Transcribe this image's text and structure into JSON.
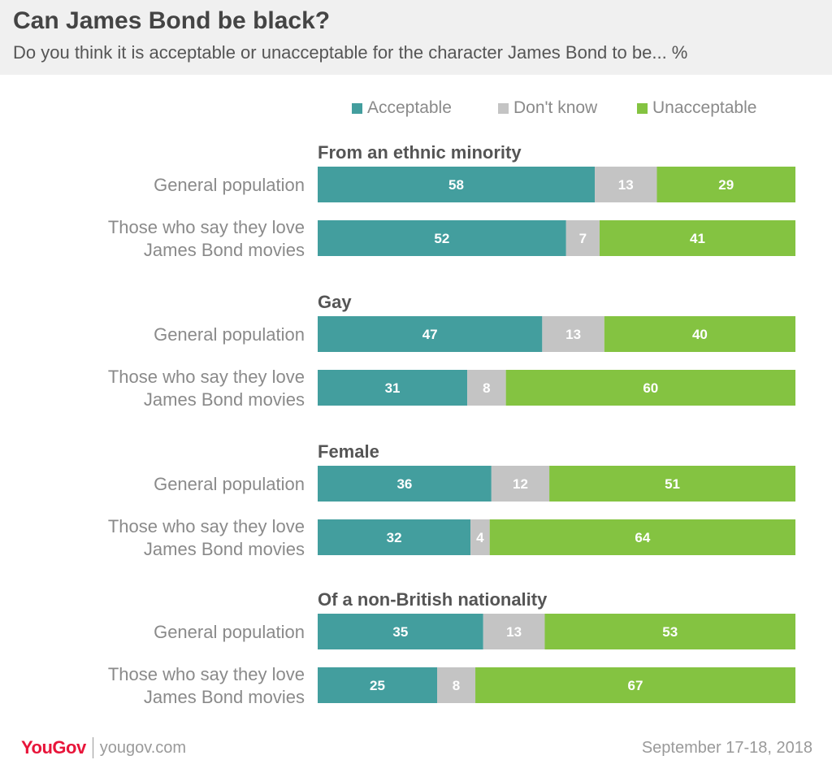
{
  "header": {
    "title": "Can James Bond be black?",
    "subtitle": "Do you think it is acceptable or unacceptable for the character James Bond to be... %"
  },
  "legend": [
    {
      "label": "Acceptable",
      "color": "#439e9e"
    },
    {
      "label": "Don't know",
      "color": "#c4c4c4"
    },
    {
      "label": "Unacceptable",
      "color": "#84c341"
    }
  ],
  "chart_data": {
    "type": "bar",
    "orientation": "horizontal",
    "stacked": true,
    "xlim": [
      0,
      100
    ],
    "unit": "%",
    "legend_position": "top-right",
    "grid": false,
    "series": [
      {
        "name": "Acceptable",
        "color": "#439e9e"
      },
      {
        "name": "Don't know",
        "color": "#c4c4c4"
      },
      {
        "name": "Unacceptable",
        "color": "#84c341"
      }
    ],
    "groups": [
      {
        "title": "From an ethnic minority",
        "rows": [
          {
            "label_lines": [
              "General population"
            ],
            "values": [
              58,
              13,
              29
            ]
          },
          {
            "label_lines": [
              "Those who say they love",
              "James Bond movies"
            ],
            "values": [
              52,
              7,
              41
            ]
          }
        ]
      },
      {
        "title": "Gay",
        "rows": [
          {
            "label_lines": [
              "General population"
            ],
            "values": [
              47,
              13,
              40
            ]
          },
          {
            "label_lines": [
              "Those who say they love",
              "James Bond movies"
            ],
            "values": [
              31,
              8,
              60
            ]
          }
        ]
      },
      {
        "title": "Female",
        "rows": [
          {
            "label_lines": [
              "General population"
            ],
            "values": [
              36,
              12,
              51
            ]
          },
          {
            "label_lines": [
              "Those who say they love",
              "James Bond movies"
            ],
            "values": [
              32,
              4,
              64
            ]
          }
        ]
      },
      {
        "title": "Of a non-British nationality",
        "rows": [
          {
            "label_lines": [
              "General population"
            ],
            "values": [
              35,
              13,
              53
            ]
          },
          {
            "label_lines": [
              "Those who say they love",
              "James Bond movies"
            ],
            "values": [
              25,
              8,
              67
            ]
          }
        ]
      }
    ]
  },
  "footer": {
    "brand": "YouGov",
    "url": "yougov.com",
    "date": "September 17-18, 2018"
  }
}
